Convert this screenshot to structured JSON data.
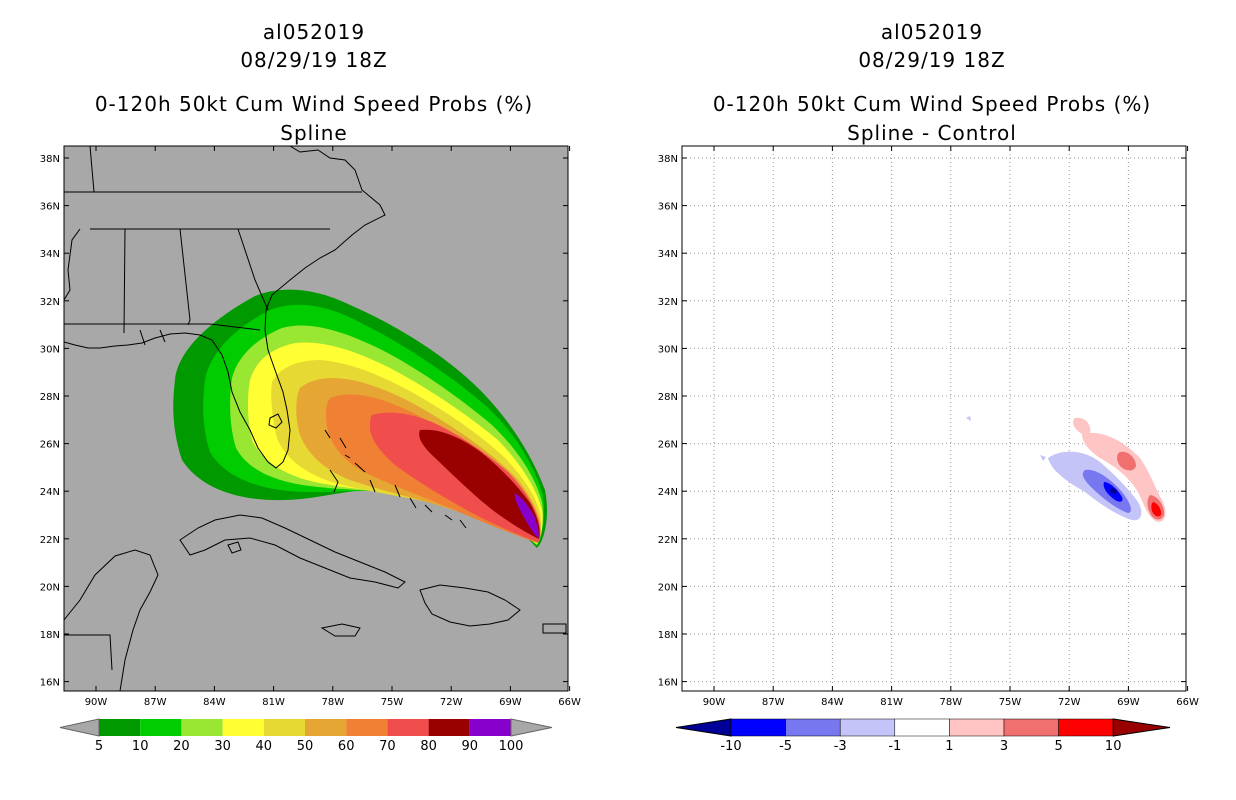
{
  "left_panel": {
    "storm_id": "al052019",
    "date": "08/29/19 18Z",
    "product": "0-120h 50kt Cum Wind Speed Probs (%)",
    "subtitle": "Spline",
    "colorbar": {
      "labels": [
        "5",
        "10",
        "20",
        "30",
        "40",
        "50",
        "60",
        "70",
        "80",
        "90",
        "100"
      ],
      "colors": [
        "#009900",
        "#00cc00",
        "#99e633",
        "#ffff33",
        "#e6d933",
        "#e6a633",
        "#f08033",
        "#f04d4d",
        "#990000",
        "#8800cc"
      ]
    }
  },
  "right_panel": {
    "storm_id": "al052019",
    "date": "08/29/19 18Z",
    "product": "0-120h 50kt Cum Wind Speed Probs (%)",
    "subtitle": "Spline - Control",
    "colorbar": {
      "labels": [
        "-10",
        "-5",
        "-3",
        "-1",
        "1",
        "3",
        "5",
        "10"
      ],
      "colors": [
        "#000099",
        "#0000ff",
        "#7777f0",
        "#c4c4f8",
        "#ffffff",
        "#ffc4c4",
        "#f07070",
        "#ff0000",
        "#990000"
      ]
    }
  },
  "axes": {
    "lat_labels": [
      "38N",
      "36N",
      "34N",
      "32N",
      "30N",
      "28N",
      "26N",
      "24N",
      "22N",
      "20N",
      "18N",
      "16N"
    ],
    "lon_labels": [
      "90W",
      "87W",
      "84W",
      "81W",
      "78W",
      "75W",
      "72W",
      "69W",
      "66W"
    ]
  }
}
